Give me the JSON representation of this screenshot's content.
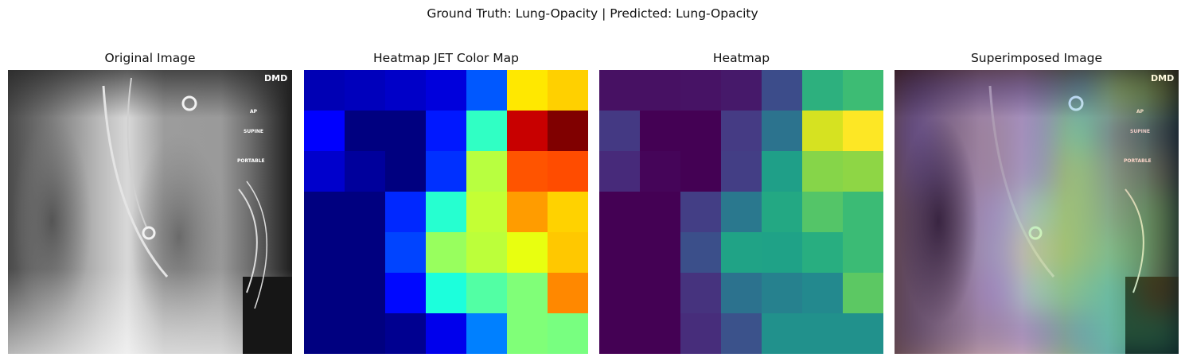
{
  "figure": {
    "suptitle": "Ground Truth: Lung-Opacity | Predicted: Lung-Opacity"
  },
  "panels": [
    {
      "id": "original",
      "title": "Original Image"
    },
    {
      "id": "jet",
      "title": "Heatmap JET Color Map"
    },
    {
      "id": "viridis",
      "title": "Heatmap"
    },
    {
      "id": "superimposed",
      "title": "Superimposed Image"
    }
  ],
  "xray_labels": {
    "corner": "DMD",
    "ap": "AP",
    "supine": "SUPINE",
    "portable": "PORTABLE"
  },
  "heatmap_values": [
    [
      0.1,
      0.1,
      0.12,
      0.15,
      0.35,
      0.65,
      0.7
    ],
    [
      0.18,
      0.05,
      0.05,
      0.2,
      0.45,
      0.88,
      0.98
    ],
    [
      0.14,
      0.07,
      0.03,
      0.22,
      0.55,
      0.76,
      0.78
    ],
    [
      0.03,
      0.03,
      0.22,
      0.48,
      0.58,
      0.71,
      0.67
    ],
    [
      0.03,
      0.03,
      0.28,
      0.57,
      0.59,
      0.65,
      0.67
    ],
    [
      0.03,
      0.03,
      0.2,
      0.45,
      0.49,
      0.56,
      0.74
    ],
    [
      0.03,
      0.03,
      0.12,
      0.28,
      0.38,
      0.52,
      0.52
    ]
  ],
  "colormaps": {
    "jet": [
      [
        "#0000b4",
        "#0000bc",
        "#0000c8",
        "#0000dc",
        "#0058ff",
        "#ffe800",
        "#ffd000"
      ],
      [
        "#0000ff",
        "#000080",
        "#000080",
        "#0018ff",
        "#30ffc4",
        "#c80000",
        "#800000"
      ],
      [
        "#0000cc",
        "#00009c",
        "#000080",
        "#0030ff",
        "#b8ff40",
        "#ff5400",
        "#ff4c00"
      ],
      [
        "#000080",
        "#000080",
        "#0028ff",
        "#26ffd0",
        "#c4ff34",
        "#ff9c00",
        "#ffd200"
      ],
      [
        "#000080",
        "#000080",
        "#0044ff",
        "#98ff5e",
        "#bcff3a",
        "#e8ff10",
        "#ffc800"
      ],
      [
        "#000080",
        "#000080",
        "#0008ff",
        "#1cffdc",
        "#52ffa4",
        "#80ff78",
        "#ff8800"
      ],
      [
        "#000080",
        "#000080",
        "#000090",
        "#0000ec",
        "#0080ff",
        "#80ff78",
        "#78ff80"
      ]
    ],
    "viridis": [
      [
        "#471163",
        "#471163",
        "#471365",
        "#46196a",
        "#3c4c8a",
        "#2db07e",
        "#3dbc74"
      ],
      [
        "#443983",
        "#440154",
        "#440154",
        "#453b84",
        "#2c738e",
        "#d6e221",
        "#fde725"
      ],
      [
        "#472a7a",
        "#450559",
        "#440154",
        "#433e85",
        "#1f9f88",
        "#86d549",
        "#8ed645"
      ],
      [
        "#440154",
        "#440154",
        "#433e85",
        "#2a788e",
        "#23a883",
        "#54c568",
        "#3bbb75"
      ],
      [
        "#440154",
        "#440154",
        "#3b4f8a",
        "#20a386",
        "#1fa287",
        "#28ae80",
        "#3bbb75"
      ],
      [
        "#440154",
        "#440154",
        "#46337e",
        "#2c728e",
        "#26818e",
        "#23898e",
        "#5cc863"
      ],
      [
        "#440154",
        "#440154",
        "#472d7b",
        "#3b528b",
        "#21918c",
        "#21918c",
        "#21918c"
      ]
    ]
  }
}
